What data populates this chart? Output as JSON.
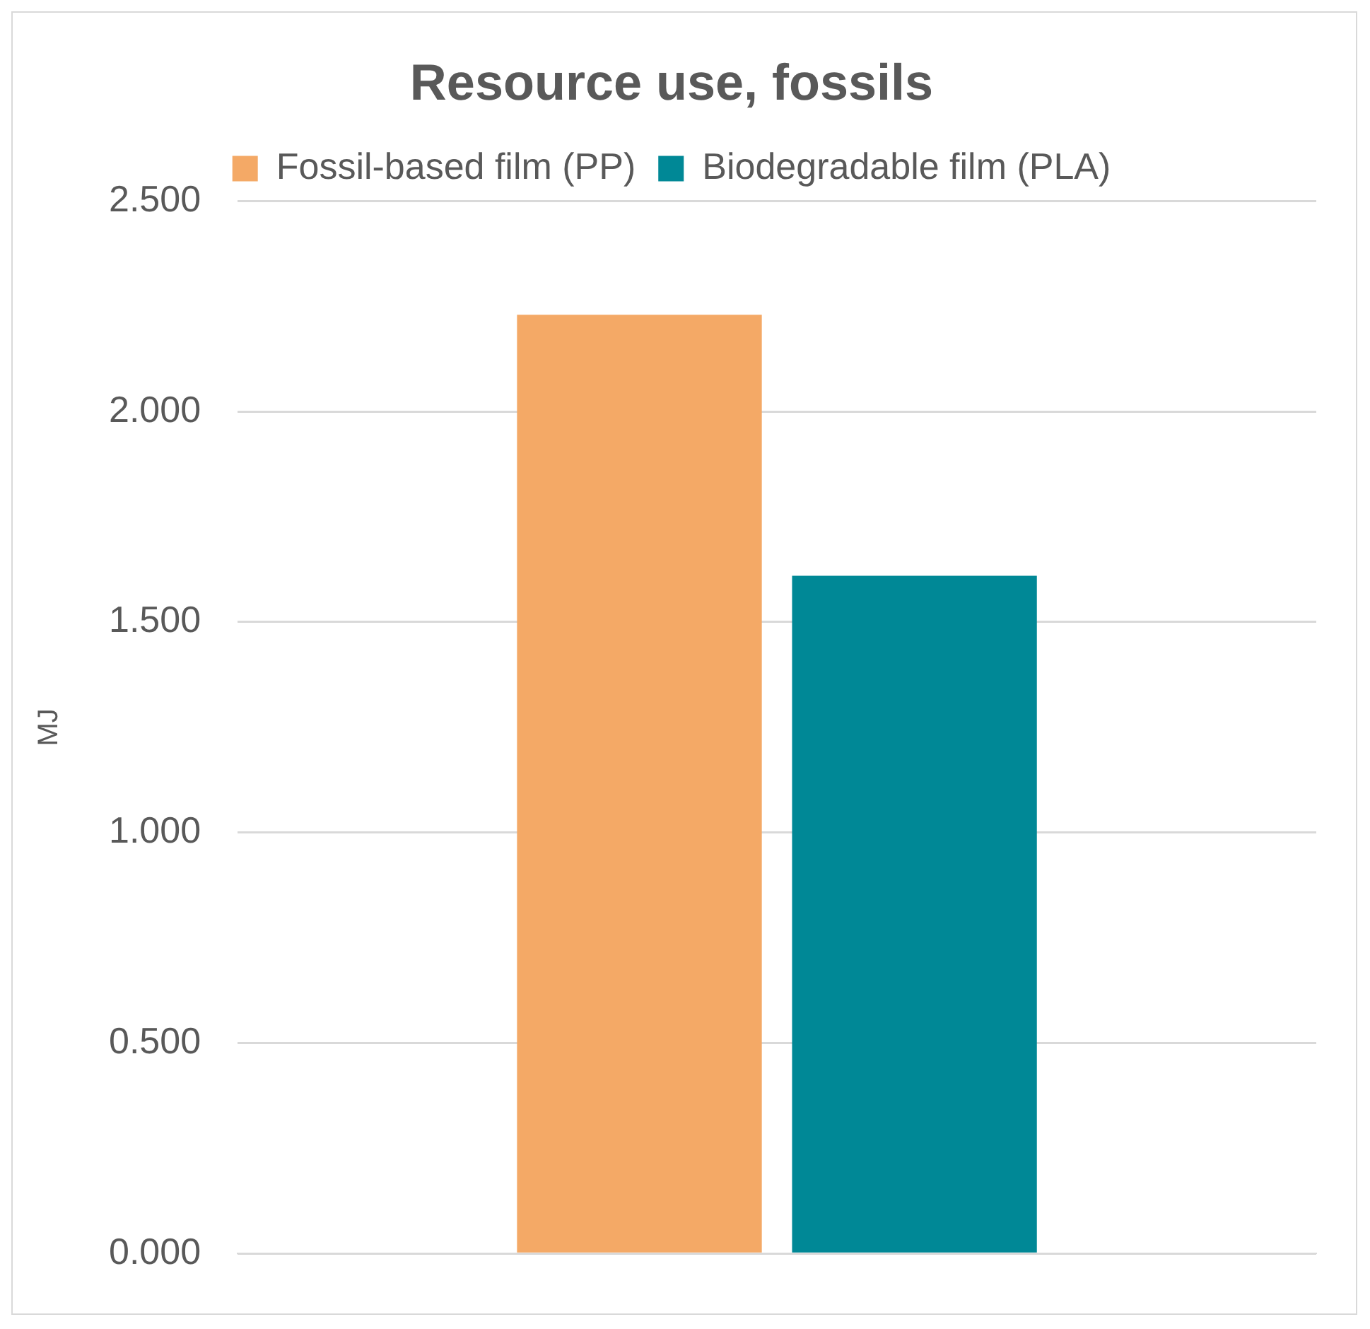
{
  "chart_data": {
    "type": "bar",
    "title": "Resource use, fossils",
    "ylabel": "MJ",
    "categories": [
      null
    ],
    "series": [
      {
        "name": "Fossil-based film (PP)",
        "color": "#f4a966",
        "values": [
          2.23
        ]
      },
      {
        "name": "Biodegradable film (PLA)",
        "color": "#008896",
        "values": [
          1.61
        ]
      }
    ],
    "ylim": [
      0,
      2.5
    ],
    "yticks": [
      {
        "value": 0,
        "label": "0.000"
      },
      {
        "value": 0.5,
        "label": "0.500"
      },
      {
        "value": 1,
        "label": "1.000"
      },
      {
        "value": 1.5,
        "label": "1.500"
      },
      {
        "value": 2,
        "label": "2.000"
      },
      {
        "value": 2.5,
        "label": "2.500"
      }
    ],
    "grid": "y",
    "legend": "top"
  }
}
